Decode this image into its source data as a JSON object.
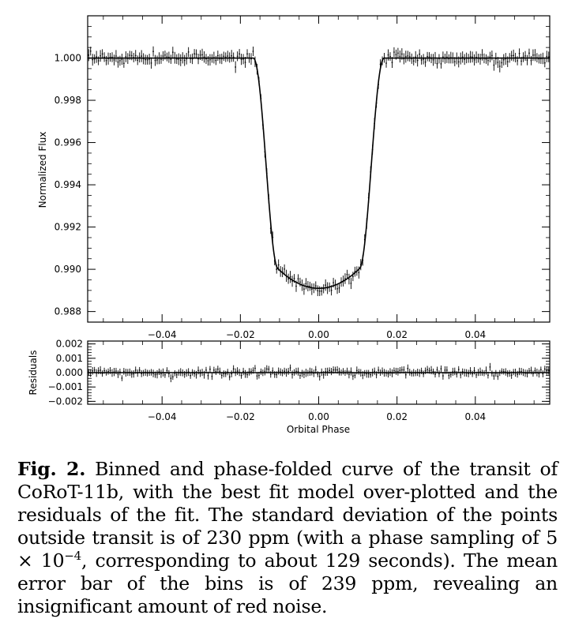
{
  "chart_data": [
    {
      "type": "scatter",
      "panel": "top",
      "title": "",
      "xlabel": "",
      "ylabel": "Normalized Flux",
      "xlim": [
        -0.059,
        0.059
      ],
      "ylim": [
        0.9875,
        1.002
      ],
      "grid": false,
      "legend": "none",
      "x_ticks": [
        -0.04,
        -0.02,
        0.0,
        0.02,
        0.04
      ],
      "x_tick_labels": [
        "−0.04",
        "−0.02",
        "0.00",
        "0.02",
        "0.04"
      ],
      "y_ticks": [
        0.988,
        0.99,
        0.992,
        0.994,
        0.996,
        0.998,
        1.0
      ],
      "y_tick_labels": [
        "0.988",
        "0.990",
        "0.992",
        "0.994",
        "0.996",
        "0.998",
        "1.000"
      ],
      "transit_model": {
        "baseline": 1.0,
        "depth": 0.0109,
        "total_half_width": 0.0167,
        "flat_half_width": 0.0105,
        "ingress_half_width": 0.0152
      },
      "phase_sampling": 0.0005,
      "out_of_transit_scatter": 0.00023,
      "mean_error_bar": 0.000239,
      "series": [
        {
          "kind": "binned-points-with-error-bars",
          "color": "#000000"
        },
        {
          "kind": "best-fit-model-line",
          "color": "#000000"
        }
      ]
    },
    {
      "type": "scatter",
      "panel": "bottom",
      "title": "",
      "xlabel": "Orbital Phase",
      "ylabel": "Residuals",
      "xlim": [
        -0.059,
        0.059
      ],
      "ylim": [
        -0.0022,
        0.0022
      ],
      "grid": false,
      "legend": "none",
      "x_ticks": [
        -0.04,
        -0.02,
        0.0,
        0.02,
        0.04
      ],
      "x_tick_labels": [
        "−0.04",
        "−0.02",
        "0.00",
        "0.02",
        "0.04"
      ],
      "y_ticks": [
        -0.002,
        -0.001,
        0.0,
        0.001,
        0.002
      ],
      "y_tick_labels": [
        "−0.002",
        "−0.001",
        "0.000",
        "0.001",
        "0.002"
      ],
      "residual_scatter": 0.00023,
      "mean_error_bar": 0.000239,
      "series": [
        {
          "kind": "residual-points-with-error-bars",
          "color": "#000000"
        },
        {
          "kind": "zero-line",
          "color": "#000000"
        }
      ]
    }
  ],
  "caption": {
    "label": "Fig. 2.",
    "text_before_math": " Binned and phase-folded curve of the transit of CoRoT-11b, with the best fit model over-plotted and the residuals of the fit. The standard deviation of the points outside transit is of 230 ppm (with a phase sampling of ",
    "math_base": "5 × 10",
    "math_exponent": "−4",
    "text_after_math": ", corresponding to about 129 seconds). The mean error bar of the bins is of 239 ppm, revealing an insignificant amount of red noise."
  }
}
